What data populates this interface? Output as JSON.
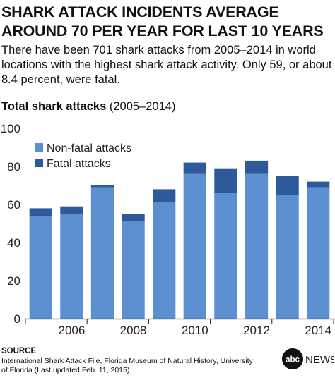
{
  "headline": "SHARK ATTACK INCIDENTS AVERAGE AROUND 70 PER YEAR FOR LAST 10 YEARS",
  "subhead": "There have been 701 shark attacks from 2005–2014 in world locations with the highest shark attack activity. Only 59, or about 8.4 percent, were fatal.",
  "chart_title_bold": "Total shark attacks",
  "chart_title_range": "(2005–2014)",
  "chart_data": {
    "type": "bar",
    "stacked": true,
    "categories": [
      2005,
      2006,
      2007,
      2008,
      2009,
      2010,
      2011,
      2012,
      2013,
      2014
    ],
    "x_tick_labels": [
      "2006",
      "2008",
      "2010",
      "2012",
      "2014"
    ],
    "series": [
      {
        "name": "Non-fatal attacks",
        "color": "#5b8fd0",
        "values": [
          54,
          55,
          69,
          51,
          61,
          76,
          66,
          76,
          65,
          69
        ]
      },
      {
        "name": "Fatal attacks",
        "color": "#2e5a9b",
        "values": [
          4,
          4,
          1,
          4,
          7,
          6,
          13,
          7,
          10,
          3
        ]
      }
    ],
    "ylim": [
      0,
      100
    ],
    "y_ticks": [
      0,
      20,
      40,
      60,
      80,
      100
    ],
    "grid": false,
    "legend_position": "top-left",
    "xlabel": "",
    "ylabel": ""
  },
  "source": {
    "title": "SOURCE",
    "text": "International Shark Attack File, Florida Museum of Natural History, University of Florida (Last updated Feb. 11, 2015)"
  },
  "logo": {
    "mark": "abc",
    "word": "NEWS"
  }
}
